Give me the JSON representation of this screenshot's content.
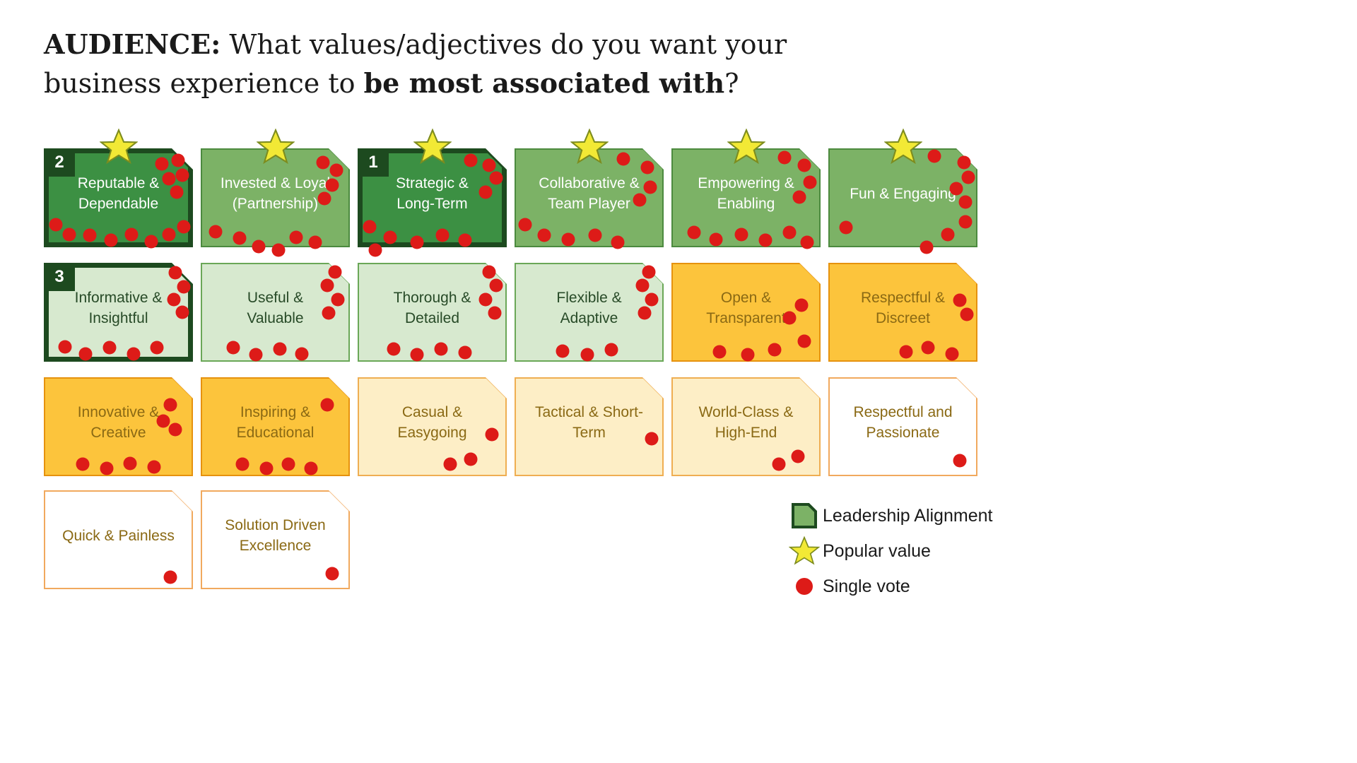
{
  "title": {
    "bold1": "AUDIENCE:",
    "normal1": " What values/adjectives do you want your business experience to ",
    "bold2": "be most associated with",
    "normal2": "?"
  },
  "legend": {
    "items": [
      {
        "icon": "leadership-card-icon",
        "label": "Leadership Alignment"
      },
      {
        "icon": "star-icon",
        "label": "Popular value"
      },
      {
        "icon": "vote-dot-icon",
        "label": "Single vote"
      }
    ]
  },
  "colors": {
    "c-red": "#dd1b18",
    "c-star": "#f2e935",
    "c-star-stroke": "#7d8c1e",
    "c-border-dark": "#1d4a1f",
    "c-green-dark": "#3c9043",
    "c-green-mid": "#7cb266",
    "c-green-border": "#4c8a3f",
    "c-green-light": "#d7e9cf",
    "c-lightgreen-border": "#6aa757",
    "c-text-green": "#274a27",
    "c-orange": "#fcc43c",
    "c-orange-border": "#e6920e",
    "c-pale": "#fdeec6",
    "c-pale-border": "#efae52",
    "c-white-border": "#f1a95e",
    "c-text-brown": "#8a6914",
    "c-title": "#1a1a1a"
  },
  "cards": [
    {
      "label": "Reputable & Dependable",
      "row": 0,
      "col": 0,
      "type": "leadership-dark",
      "star": true,
      "badge": "2",
      "dots": [
        [
          79,
          16
        ],
        [
          90,
          12
        ],
        [
          93,
          27
        ],
        [
          84,
          31
        ],
        [
          89,
          44
        ],
        [
          8,
          77
        ],
        [
          17,
          87
        ],
        [
          31,
          88
        ],
        [
          45,
          93
        ],
        [
          59,
          87
        ],
        [
          72,
          94
        ],
        [
          84,
          87
        ],
        [
          94,
          79
        ]
      ]
    },
    {
      "label": "Invested & Loyal (Partnership)",
      "row": 0,
      "col": 1,
      "type": "green",
      "star": true,
      "dots": [
        [
          82,
          14
        ],
        [
          91,
          22
        ],
        [
          88,
          37
        ],
        [
          83,
          51
        ],
        [
          10,
          84
        ],
        [
          26,
          91
        ],
        [
          39,
          99
        ],
        [
          52,
          103
        ],
        [
          64,
          90
        ],
        [
          77,
          95
        ]
      ]
    },
    {
      "label": "Strategic & Long-Term",
      "row": 0,
      "col": 2,
      "type": "leadership-dark",
      "star": true,
      "badge": "1",
      "dots": [
        [
          76,
          12
        ],
        [
          88,
          17
        ],
        [
          93,
          30
        ],
        [
          86,
          44
        ],
        [
          8,
          79
        ],
        [
          22,
          90
        ],
        [
          40,
          95
        ],
        [
          57,
          88
        ],
        [
          72,
          93
        ],
        [
          12,
          103
        ]
      ]
    },
    {
      "label": "Collaborative & Team Player",
      "row": 0,
      "col": 3,
      "type": "green",
      "star": true,
      "dots": [
        [
          73,
          11
        ],
        [
          89,
          19
        ],
        [
          91,
          39
        ],
        [
          84,
          52
        ],
        [
          7,
          77
        ],
        [
          20,
          88
        ],
        [
          36,
          92
        ],
        [
          54,
          88
        ],
        [
          69,
          95
        ]
      ]
    },
    {
      "label": "Empowering & Enabling",
      "row": 0,
      "col": 4,
      "type": "green",
      "star": true,
      "dots": [
        [
          76,
          9
        ],
        [
          89,
          17
        ],
        [
          93,
          34
        ],
        [
          86,
          49
        ],
        [
          15,
          85
        ],
        [
          30,
          92
        ],
        [
          47,
          87
        ],
        [
          63,
          93
        ],
        [
          79,
          85
        ],
        [
          91,
          95
        ]
      ]
    },
    {
      "label": "Fun & Engaging",
      "row": 0,
      "col": 5,
      "type": "green",
      "star": true,
      "dots": [
        [
          71,
          8
        ],
        [
          91,
          14
        ],
        [
          94,
          29
        ],
        [
          86,
          41
        ],
        [
          92,
          54
        ],
        [
          12,
          80
        ],
        [
          80,
          87
        ],
        [
          92,
          74
        ],
        [
          66,
          100
        ]
      ]
    },
    {
      "label": "Informative & Insightful",
      "row": 1,
      "col": 0,
      "type": "leadership-light",
      "badge": "3",
      "dots": [
        [
          88,
          10
        ],
        [
          94,
          24
        ],
        [
          87,
          37
        ],
        [
          93,
          50
        ],
        [
          14,
          85
        ],
        [
          28,
          92
        ],
        [
          44,
          86
        ],
        [
          60,
          92
        ],
        [
          76,
          86
        ]
      ]
    },
    {
      "label": "Useful & Valuable",
      "row": 1,
      "col": 1,
      "type": "lightgreen",
      "dots": [
        [
          90,
          9
        ],
        [
          85,
          23
        ],
        [
          92,
          37
        ],
        [
          86,
          51
        ],
        [
          22,
          86
        ],
        [
          37,
          93
        ],
        [
          53,
          87
        ],
        [
          68,
          92
        ]
      ]
    },
    {
      "label": "Thorough & Detailed",
      "row": 1,
      "col": 2,
      "type": "lightgreen",
      "dots": [
        [
          88,
          9
        ],
        [
          93,
          23
        ],
        [
          86,
          37
        ],
        [
          92,
          51
        ],
        [
          24,
          87
        ],
        [
          40,
          93
        ],
        [
          56,
          87
        ],
        [
          72,
          91
        ]
      ]
    },
    {
      "label": "Flexible & Adaptive",
      "row": 1,
      "col": 3,
      "type": "lightgreen",
      "dots": [
        [
          90,
          9
        ],
        [
          86,
          23
        ],
        [
          92,
          37
        ],
        [
          87,
          51
        ],
        [
          32,
          89
        ],
        [
          49,
          93
        ],
        [
          65,
          88
        ]
      ]
    },
    {
      "label": "Open & Transparent",
      "row": 1,
      "col": 4,
      "type": "orange",
      "dots": [
        [
          87,
          43
        ],
        [
          79,
          56
        ],
        [
          32,
          90
        ],
        [
          51,
          93
        ],
        [
          69,
          88
        ],
        [
          89,
          79
        ]
      ]
    },
    {
      "label": "Respectful & Discreet",
      "row": 1,
      "col": 5,
      "type": "orange",
      "dots": [
        [
          88,
          38
        ],
        [
          93,
          52
        ],
        [
          52,
          90
        ],
        [
          67,
          86
        ],
        [
          83,
          92
        ]
      ]
    },
    {
      "label": "Innovative & Creative",
      "row": 2,
      "col": 0,
      "type": "orange",
      "dots": [
        [
          85,
          28
        ],
        [
          80,
          44
        ],
        [
          88,
          53
        ],
        [
          26,
          88
        ],
        [
          42,
          92
        ],
        [
          58,
          87
        ],
        [
          74,
          91
        ]
      ]
    },
    {
      "label": "Inspiring & Educational",
      "row": 2,
      "col": 1,
      "type": "orange",
      "dots": [
        [
          85,
          28
        ],
        [
          28,
          88
        ],
        [
          44,
          92
        ],
        [
          59,
          88
        ],
        [
          74,
          92
        ]
      ]
    },
    {
      "label": "Casual & Easygoing",
      "row": 2,
      "col": 2,
      "type": "pale",
      "dots": [
        [
          90,
          58
        ],
        [
          62,
          88
        ],
        [
          76,
          83
        ]
      ]
    },
    {
      "label": "Tactical & Short-Term",
      "row": 2,
      "col": 3,
      "type": "pale",
      "dots": [
        [
          92,
          62
        ]
      ]
    },
    {
      "label": "World-Class & High-End",
      "row": 2,
      "col": 4,
      "type": "pale",
      "dots": [
        [
          72,
          88
        ],
        [
          85,
          80
        ]
      ]
    },
    {
      "label": "Respectful and Passionate",
      "row": 2,
      "col": 5,
      "type": "white",
      "dots": [
        [
          88,
          84
        ]
      ]
    },
    {
      "label": "Quick & Painless",
      "row": 3,
      "col": 0,
      "type": "white",
      "dots": [
        [
          85,
          88
        ]
      ]
    },
    {
      "label": "Solution Driven Excellence",
      "row": 3,
      "col": 1,
      "type": "white",
      "dots": [
        [
          88,
          84
        ]
      ]
    }
  ]
}
